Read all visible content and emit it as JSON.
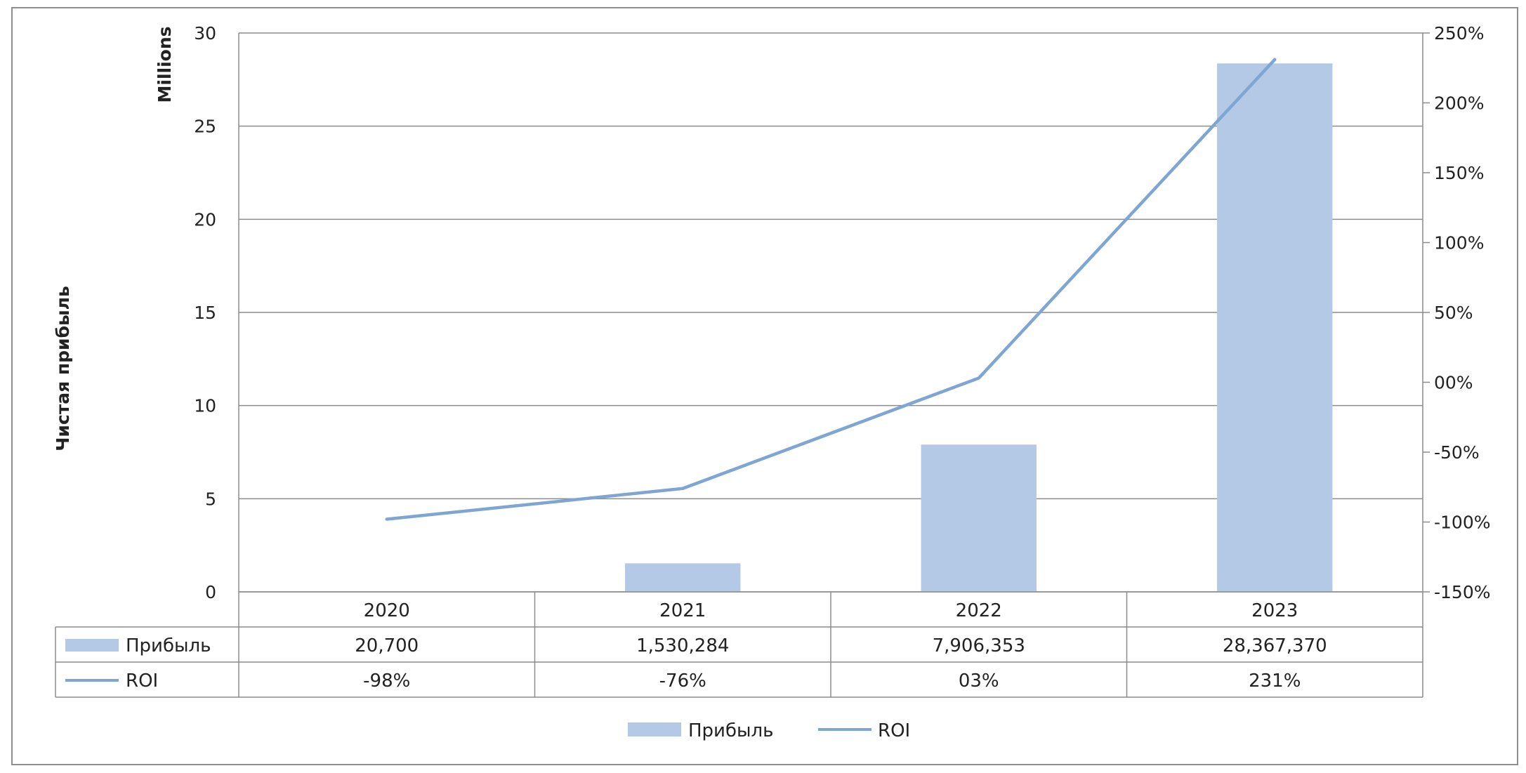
{
  "chart_data": {
    "type": "bar",
    "categories": [
      "2020",
      "2021",
      "2022",
      "2023"
    ],
    "series": [
      {
        "name": "Прибыль",
        "type": "bar",
        "axis": "left",
        "values": [
          20700,
          1530284,
          7906353,
          28367370
        ],
        "labels": [
          "20,700",
          "1,530,284",
          "7,906,353",
          "28,367,370"
        ],
        "color": "#b4c9e6"
      },
      {
        "name": "ROI",
        "type": "line",
        "axis": "right",
        "values": [
          -98,
          -76,
          3,
          231
        ],
        "labels": [
          "-98%",
          "-76%",
          "03%",
          "231%"
        ],
        "color": "#7fa5d2"
      }
    ],
    "ylabel": "Чистая прибыль",
    "y_unit": "Millions",
    "ylim": [
      0,
      30
    ],
    "y_ticks": [
      "0",
      "5",
      "10",
      "15",
      "20",
      "25",
      "30"
    ],
    "y2lim": [
      -150,
      250
    ],
    "y2_ticks": [
      "-150%",
      "-100%",
      "-50%",
      "00%",
      "50%",
      "100%",
      "150%",
      "200%",
      "250%"
    ],
    "grid": true,
    "legend": "bottom",
    "data_table": true
  }
}
